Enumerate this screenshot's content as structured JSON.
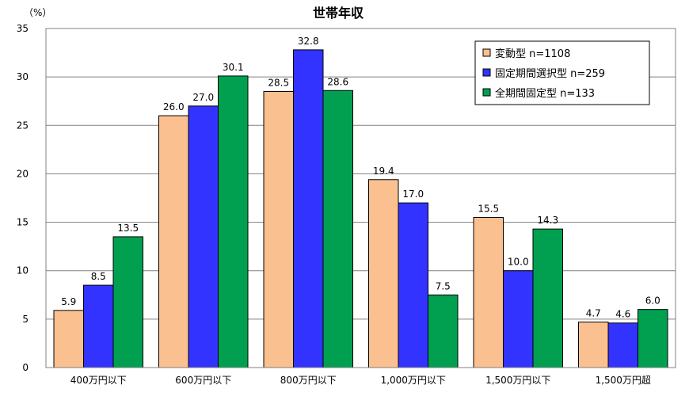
{
  "chart_data": {
    "type": "bar",
    "title": "世帯年収",
    "unit_label": "（%）",
    "xlabel": "",
    "ylabel": "",
    "ylim": [
      0,
      35
    ],
    "yticks": [
      0,
      5,
      10,
      15,
      20,
      25,
      30,
      35
    ],
    "grid": true,
    "legend_position": "top-right",
    "categories": [
      "400万円以下",
      "600万円以下",
      "800万円以下",
      "1,000万円以下",
      "1,500万円以下",
      "1,500万円超"
    ],
    "series": [
      {
        "name": "変動型 n=1108",
        "color": "#FAC090",
        "values": [
          5.9,
          26.0,
          28.5,
          19.4,
          15.5,
          4.7
        ],
        "labels": [
          "5.9",
          "26.0",
          "28.5",
          "19.4",
          "15.5",
          "4.7"
        ]
      },
      {
        "name": "固定期間選択型 n=259",
        "color": "#3333FF",
        "values": [
          8.5,
          27.0,
          32.8,
          17.0,
          10.0,
          4.6
        ],
        "labels": [
          "8.5",
          "27.0",
          "32.8",
          "17.0",
          "10.0",
          "4.6"
        ]
      },
      {
        "name": "全期間固定型 n=133",
        "color": "#00A050",
        "values": [
          13.5,
          30.1,
          28.6,
          7.5,
          14.3,
          6.0
        ],
        "labels": [
          "13.5",
          "30.1",
          "28.6",
          "7.5",
          "14.3",
          "6.0"
        ]
      }
    ]
  }
}
